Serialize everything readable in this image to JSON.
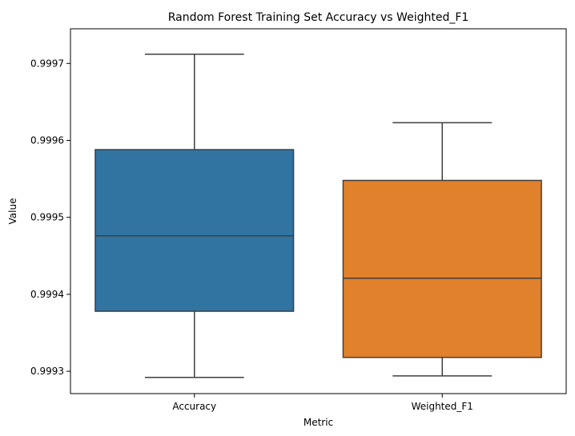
{
  "chart_data": {
    "type": "box",
    "title": "Random Forest Training Set Accuracy vs Weighted_F1",
    "xlabel": "Metric",
    "ylabel": "Value",
    "categories": [
      "Accuracy",
      "Weighted_F1"
    ],
    "boxes": [
      {
        "category": "Accuracy",
        "whisker_low": 0.999292,
        "q1": 0.999378,
        "median": 0.999476,
        "q3": 0.999588,
        "whisker_high": 0.999712,
        "color": "#3274a1"
      },
      {
        "category": "Weighted_F1",
        "whisker_low": 0.999294,
        "q1": 0.999318,
        "median": 0.999421,
        "q3": 0.999548,
        "whisker_high": 0.999623,
        "color": "#e1812c"
      }
    ],
    "ylim": [
      0.999271,
      0.999745
    ],
    "yticks": [
      0.9993,
      0.9994,
      0.9995,
      0.9996,
      0.9997
    ],
    "ytick_labels": [
      "0.9993",
      "0.9994",
      "0.9995",
      "0.9996",
      "0.9997"
    ],
    "grid": false,
    "legend": "none",
    "line_color": "#3f3f3f"
  }
}
